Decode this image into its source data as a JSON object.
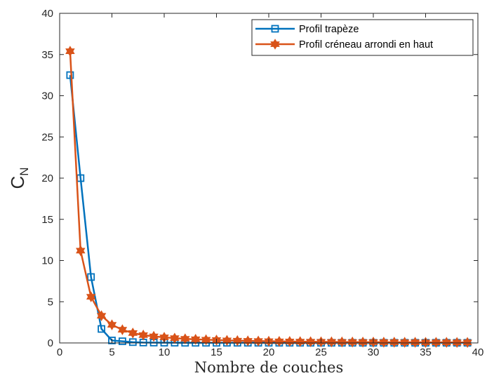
{
  "chart_data": {
    "type": "line",
    "xlabel": "Nombre de couches",
    "ylabel_main": "C",
    "ylabel_sub": "N",
    "xlim": [
      0,
      40
    ],
    "ylim": [
      0,
      40
    ],
    "xticks": [
      0,
      5,
      10,
      15,
      20,
      25,
      30,
      35,
      40
    ],
    "yticks": [
      0,
      5,
      10,
      15,
      20,
      25,
      30,
      35,
      40
    ],
    "grid": false,
    "legend_position": "top-right",
    "x": [
      1,
      2,
      3,
      4,
      5,
      6,
      7,
      8,
      9,
      10,
      11,
      12,
      13,
      14,
      15,
      16,
      17,
      18,
      19,
      20,
      21,
      22,
      23,
      24,
      25,
      26,
      27,
      28,
      29,
      30,
      31,
      32,
      33,
      34,
      35,
      36,
      37,
      38,
      39
    ],
    "series": [
      {
        "name": "Profil trapèze",
        "color": "#0072BD",
        "marker": "square",
        "values": [
          32.5,
          20.0,
          8.0,
          1.7,
          0.3,
          0.2,
          0.1,
          0.05,
          0.04,
          0.03,
          0.03,
          0.02,
          0.02,
          0.02,
          0.02,
          0.02,
          0.02,
          0.02,
          0.02,
          0.02,
          0.02,
          0.02,
          0.02,
          0.02,
          0.02,
          0.02,
          0.02,
          0.02,
          0.02,
          0.02,
          0.02,
          0.02,
          0.02,
          0.02,
          0.02,
          0.02,
          0.02,
          0.02,
          0.02
        ]
      },
      {
        "name": "Profil créneau arrondi en haut",
        "color": "#D95319",
        "marker": "hexagram",
        "values": [
          35.4,
          11.2,
          5.6,
          3.3,
          2.2,
          1.6,
          1.2,
          0.95,
          0.8,
          0.68,
          0.58,
          0.5,
          0.44,
          0.39,
          0.35,
          0.31,
          0.28,
          0.25,
          0.23,
          0.21,
          0.19,
          0.18,
          0.16,
          0.15,
          0.14,
          0.13,
          0.12,
          0.11,
          0.1,
          0.1,
          0.09,
          0.09,
          0.08,
          0.08,
          0.07,
          0.07,
          0.07,
          0.06,
          0.06
        ]
      }
    ]
  }
}
